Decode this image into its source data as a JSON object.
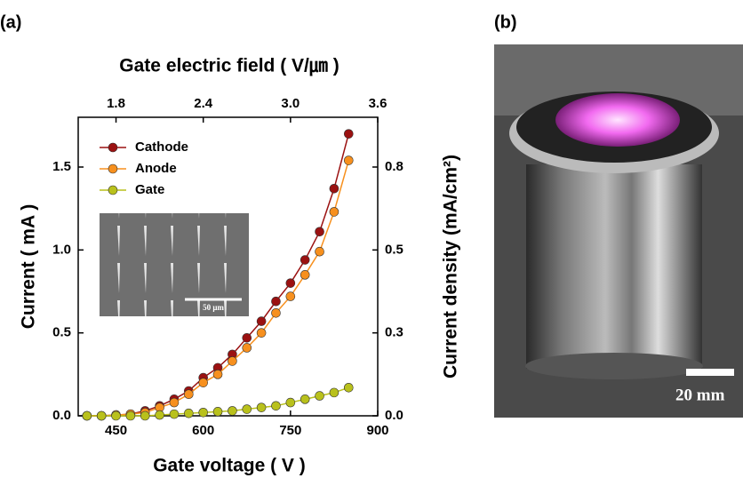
{
  "chart_data": {
    "type": "line",
    "panel_label": "(a)",
    "x_label": "Gate voltage ( V )",
    "y_label": "Current ( mA )",
    "y2_label": "Current density (mA/cm²)",
    "x2_label": "Gate electric field ( V/㎛ )",
    "x": [
      400,
      425,
      450,
      475,
      500,
      525,
      550,
      575,
      600,
      625,
      650,
      675,
      700,
      725,
      750,
      775,
      800,
      825,
      850
    ],
    "series": [
      {
        "name": "Cathode",
        "color": "#9b1111",
        "values": [
          0,
          0,
          0.005,
          0.01,
          0.03,
          0.06,
          0.1,
          0.15,
          0.23,
          0.29,
          0.37,
          0.47,
          0.57,
          0.69,
          0.8,
          0.94,
          1.11,
          1.37,
          1.7
        ]
      },
      {
        "name": "Anode",
        "color": "#f7901e",
        "values": [
          0,
          0,
          0.005,
          0.01,
          0.02,
          0.05,
          0.08,
          0.13,
          0.2,
          0.25,
          0.33,
          0.41,
          0.5,
          0.62,
          0.72,
          0.85,
          0.99,
          1.23,
          1.54
        ]
      },
      {
        "name": "Gate",
        "color": "#b9c11c",
        "values": [
          0,
          0,
          0,
          0,
          0,
          0.005,
          0.01,
          0.015,
          0.02,
          0.025,
          0.03,
          0.04,
          0.05,
          0.06,
          0.08,
          0.1,
          0.12,
          0.14,
          0.17
        ]
      }
    ],
    "xlim": [
      385,
      900
    ],
    "xticks": [
      450,
      600,
      750,
      900
    ],
    "ylim": [
      0,
      1.8
    ],
    "yticks": [
      {
        "value": 0,
        "label": "0.0"
      },
      0.5,
      {
        "value": 1,
        "label": "1.0"
      },
      1.5
    ],
    "y2lim": [
      0,
      0.972
    ],
    "y2ticks": [
      {
        "value": 0,
        "label": "0.0"
      },
      {
        "value": 0.27,
        "label": "0.3"
      },
      {
        "value": 0.54,
        "label": "0.5"
      },
      {
        "value": 0.81,
        "label": "0.8"
      }
    ],
    "x2lim": [
      1.54,
      3.6
    ],
    "x2ticks": [
      1.8,
      2.4,
      {
        "value": 3,
        "label": "3.0"
      },
      3.6
    ],
    "inset_scale": "50 μm",
    "photo": {
      "panel_label": "(b)",
      "scale_label": "20 mm"
    }
  }
}
